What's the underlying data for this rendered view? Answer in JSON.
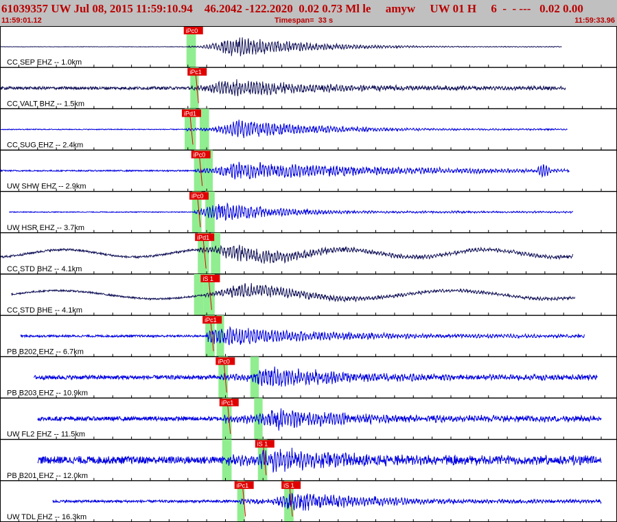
{
  "header": {
    "title": "61039357 UW Jul 08, 2015 11:59:10.94    46.2042 -122.2020  0.02 0.73 Ml le     amyw     UW 01 H     6  -  - ---   0.02 0.00",
    "start_time": "11:59:01.12",
    "timespan": "Timespan=  33 s",
    "end_time": "11:59:33.96"
  },
  "colors": {
    "header_bg": "#c0c0c0",
    "header_text": "#b80000",
    "trace_blue": "#0000e0",
    "trace_dark": "#14145a",
    "pick_box": "#e00000",
    "pick_line": "#e00000",
    "pick_window": "#90ee90"
  },
  "chart_data": {
    "type": "line",
    "x_unit": "seconds since 11:59:01.12",
    "xlim": [
      0,
      32.84
    ],
    "traces": [
      {
        "label": "CC SEP EHZ -- 1.0km",
        "color": "dark",
        "start": 0.0,
        "end": 29.9,
        "noise": 0.01,
        "ramp": 0.03,
        "slow": 0,
        "slowAmp": 0,
        "peak": 0.48,
        "peakT": 12.6,
        "decay": 4.0,
        "secondary": null,
        "picks": [
          {
            "label": "iPc0",
            "t": 10.0,
            "win": 0.5,
            "line": false
          }
        ]
      },
      {
        "label": "CC VALT BHZ -- 1.5km",
        "color": "dark",
        "start": 0.0,
        "end": 30.1,
        "noise": 0.07,
        "ramp": 0.1,
        "slow": 0,
        "slowAmp": 0,
        "peak": 0.4,
        "peakT": 12.3,
        "decay": 5.5,
        "secondary": null,
        "picks": [
          {
            "label": "iPc1",
            "t": 10.2,
            "win": 0.45,
            "line": true
          }
        ]
      },
      {
        "label": "CC SUG EHZ -- 2.4km",
        "color": "blue",
        "start": 0.0,
        "end": 30.2,
        "noise": 0.02,
        "ramp": 0.05,
        "slow": 0,
        "slowAmp": 0,
        "peak": 0.42,
        "peakT": 12.9,
        "decay": 4.5,
        "secondary": null,
        "picks": [
          {
            "label": "iPd1",
            "t": 9.9,
            "win": 0.6,
            "line": true
          },
          {
            "label": "",
            "t": 10.7,
            "win": 0.5,
            "line": false
          }
        ]
      },
      {
        "label": "UW SHW EHZ -- 2.9km",
        "color": "blue",
        "start": 0.0,
        "end": 30.3,
        "noise": 0.03,
        "ramp": 0.1,
        "slow": 0,
        "slowAmp": 0,
        "peak": 0.42,
        "peakT": 12.8,
        "decay": 9.0,
        "secondary": {
          "t": 28.9,
          "amp": 0.3
        },
        "picks": [
          {
            "label": "iPc0",
            "t": 10.4,
            "win": 0.6,
            "line": true
          },
          {
            "label": "",
            "t": 11.0,
            "win": 0.4,
            "line": false
          }
        ]
      },
      {
        "label": "UW HSR EHZ -- 3.7km",
        "color": "blue",
        "start": 0.5,
        "end": 30.5,
        "noise": 0.02,
        "ramp": 0.06,
        "slow": 0,
        "slowAmp": 0,
        "peak": 0.45,
        "peakT": 12.0,
        "decay": 3.5,
        "secondary": null,
        "picks": [
          {
            "label": "iPc0",
            "t": 10.3,
            "win": 0.5,
            "line": true
          },
          {
            "label": "",
            "t": 11.0,
            "win": 0.5,
            "line": false
          }
        ]
      },
      {
        "label": "CC STD BHZ -- 4.1km",
        "color": "dark",
        "start": 0.0,
        "end": 30.5,
        "noise": 0.05,
        "ramp": 0.12,
        "slow": 7.5,
        "slowAmp": 0.18,
        "peak": 0.38,
        "peakT": 12.5,
        "decay": 5.0,
        "secondary": null,
        "picks": [
          {
            "label": "iPd1",
            "t": 10.6,
            "win": 0.6,
            "line": true
          },
          {
            "label": "",
            "t": 11.3,
            "win": 0.5,
            "line": false
          }
        ]
      },
      {
        "label": "CC STD BHE -- 4.1km",
        "color": "dark",
        "start": 0.6,
        "end": 30.6,
        "noise": 0.04,
        "ramp": 0.1,
        "slow": 10.5,
        "slowAmp": 0.2,
        "peak": 0.35,
        "peakT": 13.0,
        "decay": 4.8,
        "secondary": null,
        "picks": [
          {
            "label": "iS 1",
            "t": 10.9,
            "win": 0.6,
            "line": true
          },
          {
            "label": "",
            "t": 10.4,
            "win": 0.5,
            "line": false
          }
        ]
      },
      {
        "label": "PB B202 EHZ -- 6.7km",
        "color": "blue",
        "start": 1.1,
        "end": 31.1,
        "noise": 0.05,
        "ramp": 0.1,
        "slow": 0,
        "slowAmp": 0,
        "peak": 0.45,
        "peakT": 11.9,
        "decay": 6.0,
        "secondary": null,
        "picks": [
          {
            "label": "iPc1",
            "t": 11.0,
            "win": 0.5,
            "line": true
          },
          {
            "label": "",
            "t": 11.6,
            "win": 0.4,
            "line": false
          }
        ]
      },
      {
        "label": "PB B203 EHZ -- 10.9km",
        "color": "blue",
        "start": 1.8,
        "end": 31.8,
        "noise": 0.1,
        "ramp": 0.12,
        "slow": 0,
        "slowAmp": 0,
        "peak": 0.45,
        "peakT": 14.6,
        "decay": 5.0,
        "secondary": null,
        "picks": [
          {
            "label": "iPc0",
            "t": 11.7,
            "win": 0.5,
            "line": true
          },
          {
            "label": "",
            "t": 13.4,
            "win": 0.45,
            "line": false
          }
        ]
      },
      {
        "label": "UW FL2 EHZ -- 11.5km",
        "color": "blue",
        "start": 2.0,
        "end": 32.0,
        "noise": 0.1,
        "ramp": 0.15,
        "slow": 0,
        "slowAmp": 0,
        "peak": 0.48,
        "peakT": 14.9,
        "decay": 4.5,
        "secondary": null,
        "picks": [
          {
            "label": "iPc1",
            "t": 11.9,
            "win": 0.5,
            "line": true
          },
          {
            "label": "",
            "t": 13.6,
            "win": 0.45,
            "line": false
          }
        ]
      },
      {
        "label": "PB B201 EHZ -- 12.0km",
        "color": "blue",
        "start": 2.0,
        "end": 32.0,
        "noise": 0.18,
        "ramp": 0.15,
        "slow": 0,
        "slowAmp": 0,
        "peak": 0.48,
        "peakT": 14.5,
        "decay": 5.0,
        "secondary": null,
        "picks": [
          {
            "label": "",
            "t": 11.9,
            "win": 0.5,
            "line": false
          },
          {
            "label": "iS 1",
            "t": 13.8,
            "win": 0.5,
            "line": true
          }
        ]
      },
      {
        "label": "UW TDL EHZ -- 16.3km",
        "color": "blue",
        "start": 2.8,
        "end": 32.0,
        "noise": 0.06,
        "ramp": 0.1,
        "slow": 0,
        "slowAmp": 0,
        "peak": 0.42,
        "peakT": 15.8,
        "decay": 5.0,
        "secondary": null,
        "picks": [
          {
            "label": "iPc1",
            "t": 12.7,
            "win": 0.4,
            "line": true
          },
          {
            "label": "iS 1",
            "t": 15.2,
            "win": 0.5,
            "line": true
          }
        ]
      }
    ]
  }
}
